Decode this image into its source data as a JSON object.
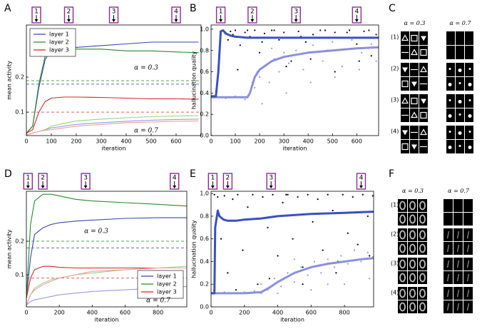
{
  "chart_data": [
    {
      "type": "line",
      "panel": "A",
      "xlabel": "iteration",
      "ylabel": "mean activity",
      "xlim": [
        0,
        700
      ],
      "ylim": [
        0.033,
        0.349
      ],
      "xticks": [
        0,
        100,
        200,
        300,
        400,
        500,
        600
      ],
      "yticks": [
        0.1,
        0.2
      ],
      "x": [
        0,
        25,
        50,
        75,
        100,
        150,
        200,
        300,
        400,
        500,
        600,
        690
      ],
      "series": [
        {
          "name": "layer 1",
          "color": "#3a48b0",
          "values": [
            0.04,
            0.06,
            0.17,
            0.25,
            0.28,
            0.285,
            0.285,
            0.29,
            0.295,
            0.3,
            0.3,
            0.3
          ]
        },
        {
          "name": "layer 2",
          "color": "#2a8a2a",
          "values": [
            0.04,
            0.06,
            0.18,
            0.26,
            0.28,
            0.285,
            0.28,
            0.28,
            0.275,
            0.275,
            0.272,
            0.27
          ]
        },
        {
          "name": "layer 3",
          "color": "#dd2222",
          "values": [
            0.04,
            0.05,
            0.1,
            0.13,
            0.14,
            0.143,
            0.143,
            0.142,
            0.14,
            0.138,
            0.138,
            0.137
          ]
        },
        {
          "color": "#9a9ae0",
          "values": [
            0.035,
            0.04,
            0.045,
            0.05,
            0.055,
            0.06,
            0.065,
            0.07,
            0.074,
            0.077,
            0.079,
            0.08
          ]
        },
        {
          "color": "#9ad080",
          "values": [
            0.035,
            0.04,
            0.045,
            0.05,
            0.06,
            0.068,
            0.075,
            0.08,
            0.084,
            0.087,
            0.089,
            0.09
          ]
        },
        {
          "color": "#f0a0a0",
          "values": [
            0.035,
            0.04,
            0.045,
            0.048,
            0.05,
            0.055,
            0.06,
            0.065,
            0.07,
            0.072,
            0.074,
            0.075
          ]
        }
      ],
      "reference_lines": [
        {
          "value": 0.18,
          "color": "#6070c0"
        },
        {
          "value": 0.19,
          "color": "#50a050"
        },
        {
          "value": 0.1,
          "color": "#e06060"
        }
      ],
      "legend": "upper left",
      "annotations": [
        "α = 0.3",
        "α = 0.7"
      ],
      "markers": [
        {
          "label": "1",
          "x": 40
        },
        {
          "label": "2",
          "x": 170
        },
        {
          "label": "3",
          "x": 350
        },
        {
          "label": "4",
          "x": 600
        }
      ]
    },
    {
      "type": "scatter",
      "panel": "B",
      "xlabel": "iteration",
      "ylabel": "hallucination quality",
      "xlim": [
        0,
        690
      ],
      "ylim": [
        0,
        1.04
      ],
      "xticks": [
        0,
        100,
        200,
        300,
        400,
        500,
        600
      ],
      "yticks": [
        {
          "value": 0,
          "label": "0.0"
        },
        0.2,
        0.4,
        0.6,
        0.8,
        {
          "value": 1,
          "label": "1.0"
        }
      ],
      "series": [
        {
          "color": "#000000",
          "style": "points",
          "x": [
            50,
            60,
            70,
            80,
            90,
            100,
            120,
            140,
            160,
            180,
            200,
            220,
            250,
            280,
            300,
            330,
            360,
            390,
            420,
            450,
            480,
            510,
            540,
            570,
            600,
            630,
            660,
            680,
            110,
            210,
            310,
            410,
            510,
            610,
            150,
            260,
            370,
            470,
            560,
            650
          ],
          "values": [
            0.99,
            0.97,
            0.9,
            0.98,
            0.95,
            0.99,
            0.85,
            0.97,
            0.93,
            0.99,
            0.78,
            0.96,
            0.99,
            0.9,
            0.97,
            0.7,
            0.98,
            0.88,
            0.95,
            0.99,
            0.8,
            0.97,
            0.92,
            0.99,
            0.86,
            0.98,
            0.75,
            0.95,
            0.62,
            0.88,
            0.65,
            0.72,
            0.6,
            0.7,
            0.99,
            0.99,
            0.93,
            0.99,
            0.97,
            0.99
          ]
        },
        {
          "color": "#9098e0",
          "style": "points",
          "x": [
            20,
            60,
            100,
            140,
            170,
            180,
            190,
            200,
            220,
            240,
            260,
            280,
            300,
            320,
            350,
            380,
            420,
            460,
            500,
            540,
            580,
            620,
            660,
            680,
            210,
            310,
            410,
            510,
            610,
            250
          ],
          "values": [
            0.36,
            0.35,
            0.37,
            0.34,
            0.5,
            0.45,
            0.6,
            0.55,
            0.65,
            0.5,
            0.72,
            0.6,
            0.78,
            0.68,
            0.8,
            0.62,
            0.85,
            0.7,
            0.88,
            0.65,
            0.9,
            0.78,
            0.86,
            0.7,
            0.3,
            0.4,
            0.5,
            0.55,
            0.62,
            0.82
          ]
        },
        {
          "color": "#8a90dc",
          "style": "line",
          "x": [
            0,
            50,
            100,
            150,
            160,
            180,
            200,
            250,
            300,
            400,
            500,
            600,
            690
          ],
          "values": [
            0.36,
            0.36,
            0.36,
            0.36,
            0.4,
            0.55,
            0.62,
            0.7,
            0.74,
            0.78,
            0.8,
            0.82,
            0.83
          ]
        },
        {
          "color": "#3a50c0",
          "style": "line",
          "x": [
            0,
            20,
            30,
            40,
            50,
            60,
            80,
            100,
            150,
            200,
            300,
            400,
            500,
            600,
            690
          ],
          "values": [
            0.37,
            0.37,
            0.6,
            0.98,
            0.99,
            0.96,
            0.94,
            0.93,
            0.92,
            0.92,
            0.92,
            0.92,
            0.92,
            0.92,
            0.92
          ]
        }
      ],
      "markers": [
        {
          "label": "1",
          "x": 40
        },
        {
          "label": "2",
          "x": 170
        },
        {
          "label": "3",
          "x": 350
        },
        {
          "label": "4",
          "x": 600
        }
      ]
    },
    {
      "type": "line",
      "panel": "D",
      "xlabel": "iteration",
      "ylabel": "mean activity",
      "xlim": [
        0,
        975
      ],
      "ylim": [
        0.004,
        0.349
      ],
      "xticks": [
        0,
        200,
        400,
        600,
        800
      ],
      "yticks": [
        0.1,
        0.2
      ],
      "x": [
        0,
        25,
        50,
        100,
        150,
        200,
        300,
        400,
        600,
        800,
        975
      ],
      "series": [
        {
          "name": "layer 1",
          "color": "#3a48b0",
          "values": [
            0.03,
            0.15,
            0.22,
            0.24,
            0.25,
            0.255,
            0.26,
            0.263,
            0.268,
            0.27,
            0.27
          ]
        },
        {
          "name": "layer 2",
          "color": "#2a8a2a",
          "values": [
            0.03,
            0.25,
            0.32,
            0.34,
            0.34,
            0.335,
            0.325,
            0.32,
            0.315,
            0.31,
            0.305
          ]
        },
        {
          "name": "layer 3",
          "color": "#dd2222",
          "values": [
            0.03,
            0.09,
            0.115,
            0.125,
            0.125,
            0.122,
            0.12,
            0.12,
            0.12,
            0.12,
            0.12
          ]
        },
        {
          "color": "#9a9ae0",
          "values": [
            0.01,
            0.02,
            0.025,
            0.03,
            0.035,
            0.04,
            0.045,
            0.05,
            0.055,
            0.06,
            0.065
          ]
        },
        {
          "color": "#9ad080",
          "values": [
            0.01,
            0.04,
            0.06,
            0.075,
            0.085,
            0.09,
            0.1,
            0.105,
            0.115,
            0.12,
            0.125
          ]
        },
        {
          "color": "#f0a0a0",
          "values": [
            0.01,
            0.04,
            0.055,
            0.07,
            0.08,
            0.09,
            0.1,
            0.11,
            0.115,
            0.12,
            0.12
          ]
        }
      ],
      "reference_lines": [
        {
          "value": 0.18,
          "color": "#6070c0"
        },
        {
          "value": 0.2,
          "color": "#50a050"
        },
        {
          "value": 0.09,
          "color": "#e06060"
        }
      ],
      "legend": "lower right",
      "annotations": [
        "α = 0.3",
        "α = 0.7"
      ],
      "markers": [
        {
          "label": "1",
          "x": 10
        },
        {
          "label": "2",
          "x": 100
        },
        {
          "label": "3",
          "x": 360
        },
        {
          "label": "4",
          "x": 900
        }
      ]
    },
    {
      "type": "scatter",
      "panel": "E",
      "xlabel": "iteration",
      "ylabel": "hallucination quality",
      "xlim": [
        0,
        975
      ],
      "ylim": [
        0,
        1.02
      ],
      "xticks": [
        0,
        200,
        400,
        600,
        800
      ],
      "yticks": [
        {
          "value": 0,
          "label": "0.0"
        },
        0.2,
        0.4,
        0.6,
        0.8,
        {
          "value": 1,
          "label": "1.0"
        }
      ],
      "series": [
        {
          "color": "#000000",
          "style": "points",
          "x": [
            20,
            40,
            60,
            80,
            100,
            130,
            160,
            190,
            220,
            250,
            280,
            310,
            340,
            370,
            400,
            430,
            460,
            490,
            520,
            550,
            580,
            610,
            640,
            670,
            700,
            730,
            760,
            790,
            820,
            850,
            880,
            910,
            940,
            970,
            150,
            350,
            550,
            750,
            950,
            450
          ],
          "values": [
            0.99,
            0.97,
            0.6,
            0.98,
            0.3,
            0.95,
            0.99,
            0.5,
            0.88,
            0.99,
            0.2,
            0.97,
            0.7,
            0.99,
            0.45,
            0.92,
            0.99,
            0.6,
            0.97,
            0.35,
            0.99,
            0.75,
            0.95,
            0.5,
            0.99,
            0.85,
            0.4,
            0.99,
            0.65,
            0.97,
            0.55,
            0.99,
            0.8,
            0.98,
            0.15,
            0.25,
            0.2,
            0.3,
            0.45,
            0.99
          ]
        },
        {
          "color": "#9098e0",
          "style": "points",
          "x": [
            20,
            80,
            140,
            200,
            260,
            300,
            340,
            380,
            420,
            460,
            500,
            540,
            580,
            620,
            660,
            700,
            740,
            780,
            820,
            860,
            900,
            940,
            970,
            400,
            600,
            800,
            950,
            500,
            700,
            300
          ],
          "values": [
            0.12,
            0.13,
            0.12,
            0.13,
            0.14,
            0.2,
            0.15,
            0.25,
            0.18,
            0.3,
            0.22,
            0.35,
            0.28,
            0.4,
            0.3,
            0.42,
            0.35,
            0.45,
            0.38,
            0.5,
            0.4,
            0.48,
            0.44,
            0.12,
            0.15,
            0.2,
            0.25,
            0.42,
            0.2,
            0.12
          ]
        },
        {
          "color": "#8a90dc",
          "style": "line",
          "x": [
            0,
            100,
            200,
            300,
            350,
            400,
            500,
            600,
            700,
            800,
            900,
            975
          ],
          "values": [
            0.12,
            0.12,
            0.12,
            0.13,
            0.17,
            0.22,
            0.3,
            0.35,
            0.38,
            0.4,
            0.42,
            0.43
          ]
        },
        {
          "color": "#3a50c0",
          "style": "line",
          "x": [
            0,
            20,
            25,
            40,
            50,
            75,
            100,
            150,
            200,
            300,
            400,
            600,
            800,
            975
          ],
          "values": [
            0.12,
            0.12,
            0.7,
            0.85,
            0.8,
            0.77,
            0.76,
            0.76,
            0.77,
            0.78,
            0.8,
            0.82,
            0.83,
            0.84
          ]
        }
      ],
      "markers": [
        {
          "label": "1",
          "x": 10
        },
        {
          "label": "2",
          "x": 100
        },
        {
          "label": "3",
          "x": 360
        },
        {
          "label": "4",
          "x": 900
        }
      ]
    }
  ],
  "image_panels": [
    {
      "panel": "C",
      "columns": [
        "α = 0.3",
        "α = 0.7"
      ],
      "rows": [
        "(1)",
        "(2)",
        "(3)",
        "(4)"
      ]
    },
    {
      "panel": "F",
      "columns": [
        "α = 0.3",
        "α = 0.7"
      ],
      "rows": [
        "(1)",
        "(2)",
        "(3)",
        "(4)"
      ]
    }
  ]
}
